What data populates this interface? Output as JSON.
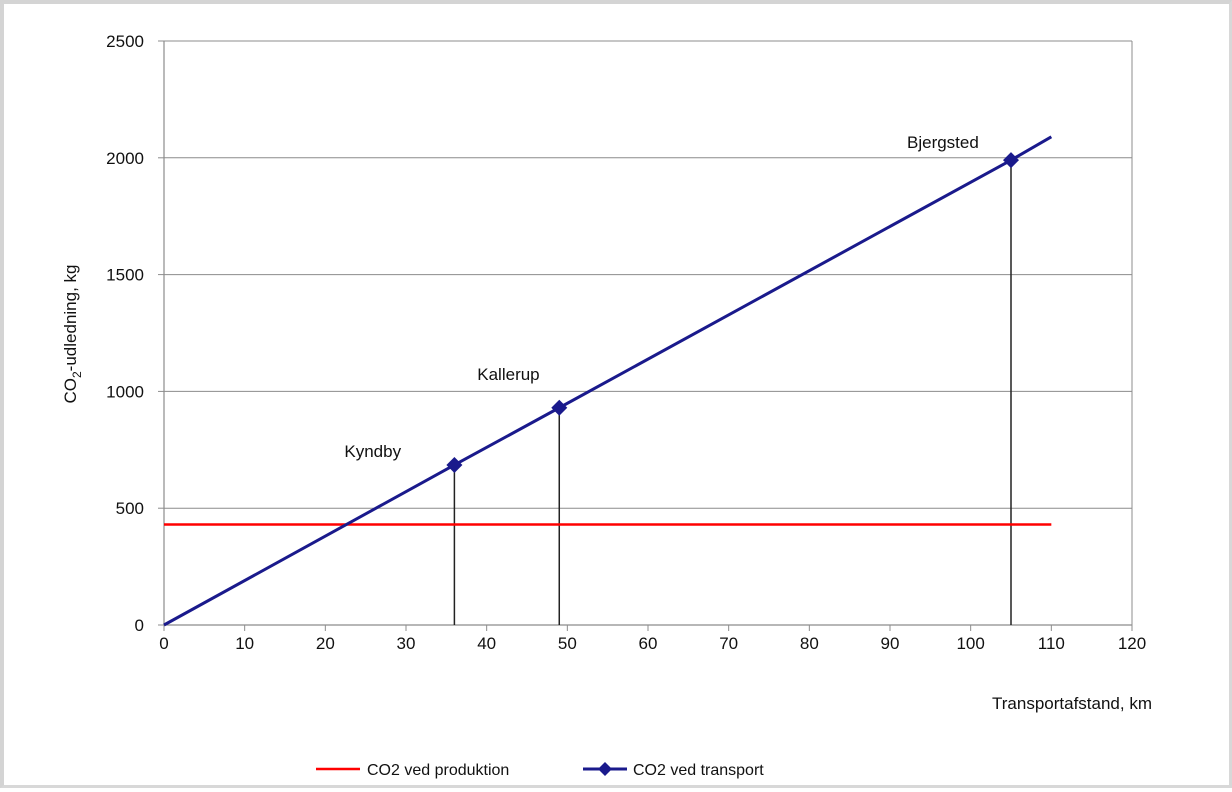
{
  "chart_data": {
    "type": "line",
    "xlabel": "Transportafstand, km",
    "ylabel_prefix": "CO",
    "ylabel_sub": "2",
    "ylabel_suffix": "-udledning, kg",
    "xlim": [
      0,
      120
    ],
    "ylim": [
      0,
      2500
    ],
    "x_ticks": [
      "0",
      "10",
      "20",
      "30",
      "40",
      "50",
      "60",
      "70",
      "80",
      "90",
      "100",
      "110",
      "120"
    ],
    "y_ticks": [
      "0",
      "500",
      "1000",
      "1500",
      "2000",
      "2500"
    ],
    "grid": "horizontal",
    "legend_position": "bottom",
    "series": [
      {
        "name": "CO2 ved produktion",
        "color": "#ff0000",
        "marker": "none",
        "x": [
          0,
          110
        ],
        "y": [
          430,
          430
        ]
      },
      {
        "name": "CO2 ved transport",
        "color": "#1a1a8c",
        "marker": "diamond",
        "x": [
          0,
          36,
          49,
          105,
          110
        ],
        "y": [
          0,
          685,
          930,
          1990,
          2090
        ]
      }
    ],
    "annotations": [
      {
        "label": "Kyndby",
        "x": 36,
        "y": 685
      },
      {
        "label": "Kallerup",
        "x": 49,
        "y": 930
      },
      {
        "label": "Bjergsted",
        "x": 105,
        "y": 1990
      }
    ],
    "drop_lines_x": [
      36,
      49,
      105
    ]
  }
}
